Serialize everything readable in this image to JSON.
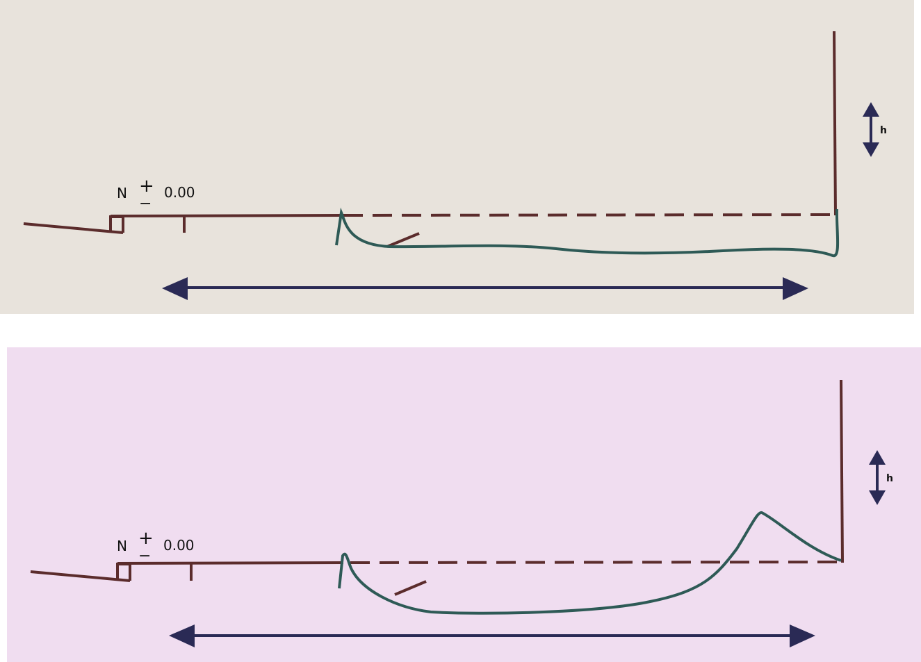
{
  "panels": [
    {
      "id": "top",
      "background": "#e8e3dc",
      "north_label": "N",
      "plus_sign": "+",
      "minus_sign": "−",
      "level_value": "0.00",
      "height_label": "h"
    },
    {
      "id": "bottom",
      "background": "#f0ddf0",
      "north_label": "N",
      "plus_sign": "+",
      "minus_sign": "−",
      "level_value": "0.00",
      "height_label": "h"
    }
  ],
  "colors": {
    "wall": "#5b2c2c",
    "water_curve": "#2e5a56",
    "dimension": "#2a2a55"
  }
}
